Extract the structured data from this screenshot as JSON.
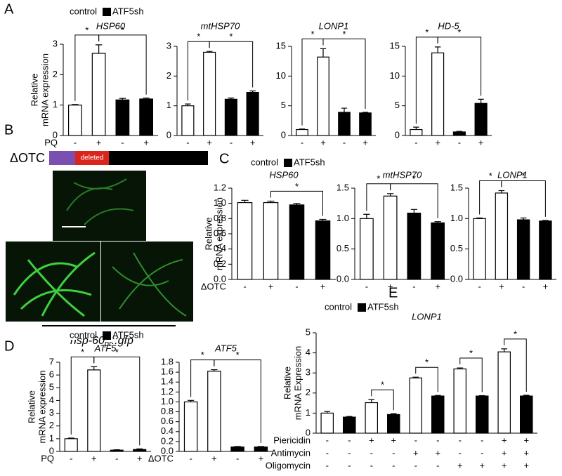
{
  "panel_labels": [
    "A",
    "B",
    "C",
    "D",
    "E"
  ],
  "construct": {
    "label": "ΔOTC",
    "segment": "deleted"
  },
  "caption": {
    "main": "hsp-60",
    "subscript": "pr",
    "suffix": "::gfp"
  },
  "chart_data": [
    {
      "type": "bar",
      "title": "HSP60",
      "y_label": [
        "Relative",
        "mRNA expression"
      ],
      "series": [
        {
          "name": "control",
          "color": "#ffffff",
          "values": [
            1.0,
            2.7,
            null,
            null
          ],
          "errors": [
            0.02,
            0.28,
            null,
            null
          ]
        },
        {
          "name": "ATF5sh",
          "color": "#000000",
          "values": [
            null,
            null,
            1.17,
            1.2
          ],
          "errors": [
            null,
            null,
            0.05,
            0.03
          ]
        }
      ],
      "conditions": [
        {
          "name": "PQ",
          "signs": [
            "-",
            "+",
            "-",
            "+"
          ]
        }
      ],
      "ylim": [
        0,
        3
      ],
      "yticks": [
        0,
        1,
        2,
        3
      ],
      "significance": [
        {
          "bars": [
            0,
            1
          ],
          "label": "*"
        },
        {
          "bars": [
            1,
            3
          ],
          "label": "*"
        }
      ]
    },
    {
      "type": "bar",
      "title": "mtHSP70",
      "series": [
        {
          "color": "#ffffff",
          "values": [
            1.0,
            2.8,
            null,
            null
          ],
          "errors": [
            0.06,
            0.03,
            null,
            null
          ]
        },
        {
          "color": "#000000",
          "values": [
            null,
            null,
            1.22,
            1.45
          ],
          "errors": [
            null,
            null,
            0.04,
            0.05
          ]
        }
      ],
      "conditions": [
        {
          "signs": [
            "-",
            "+",
            "-",
            "+"
          ]
        }
      ],
      "ylim": [
        0,
        3
      ],
      "yticks": [
        0,
        1,
        2,
        3
      ],
      "significance": [
        {
          "bars": [
            0,
            1
          ],
          "label": "*"
        },
        {
          "bars": [
            1,
            3
          ],
          "label": "*"
        }
      ]
    },
    {
      "type": "bar",
      "title": "LONP1",
      "series": [
        {
          "color": "#ffffff",
          "values": [
            1.0,
            13.2,
            null,
            null
          ],
          "errors": [
            0.1,
            1.4,
            null,
            null
          ]
        },
        {
          "color": "#000000",
          "values": [
            null,
            null,
            3.9,
            3.8
          ],
          "errors": [
            null,
            null,
            0.7,
            0.1
          ]
        }
      ],
      "conditions": [
        {
          "signs": [
            "-",
            "+",
            "-",
            "+"
          ]
        }
      ],
      "ylim": [
        0,
        15
      ],
      "yticks": [
        0,
        5,
        10,
        15
      ],
      "significance": [
        {
          "bars": [
            0,
            1
          ],
          "label": "*"
        },
        {
          "bars": [
            1,
            3
          ],
          "label": "*"
        }
      ]
    },
    {
      "type": "bar",
      "title": "HD-5",
      "series": [
        {
          "color": "#ffffff",
          "values": [
            1.0,
            13.9,
            null,
            null
          ],
          "errors": [
            0.4,
            1.0,
            null,
            null
          ]
        },
        {
          "color": "#000000",
          "values": [
            null,
            null,
            0.6,
            5.4
          ],
          "errors": [
            null,
            null,
            0.1,
            0.7
          ]
        }
      ],
      "conditions": [
        {
          "signs": [
            "-",
            "+",
            "-",
            "+"
          ]
        }
      ],
      "ylim": [
        0,
        15
      ],
      "yticks": [
        0,
        5,
        10,
        15
      ],
      "significance": [
        {
          "bars": [
            0,
            1
          ],
          "label": "*"
        },
        {
          "bars": [
            1,
            3
          ],
          "label": "*"
        }
      ]
    },
    {
      "type": "bar",
      "title": "HSP60",
      "y_label": [
        "Relative",
        "mRNA expression"
      ],
      "series": [
        {
          "name": "control",
          "color": "#ffffff",
          "values": [
            1.01,
            1.01,
            null,
            null
          ],
          "errors": [
            0.03,
            0.02,
            null,
            null
          ]
        },
        {
          "name": "ATF5sh",
          "color": "#000000",
          "values": [
            null,
            null,
            0.98,
            0.77
          ],
          "errors": [
            null,
            null,
            0.02,
            0.02
          ]
        }
      ],
      "conditions": [
        {
          "name": "ΔOTC",
          "signs": [
            "-",
            "+",
            "-",
            "+"
          ]
        }
      ],
      "ylim": [
        0,
        1.2
      ],
      "yticks": [
        {
          "value": 0,
          "label": "0.0"
        },
        0.2,
        0.4,
        0.6,
        0.8,
        {
          "value": 1,
          "label": "1.0"
        },
        1.2
      ],
      "significance": [
        {
          "bars": [
            1,
            3
          ],
          "label": "*"
        }
      ]
    },
    {
      "type": "bar",
      "title": "mtHSP70",
      "series": [
        {
          "color": "#ffffff",
          "values": [
            1.0,
            1.37,
            null,
            null
          ],
          "errors": [
            0.07,
            0.04,
            null,
            null
          ]
        },
        {
          "color": "#000000",
          "values": [
            null,
            null,
            1.09,
            0.93
          ],
          "errors": [
            null,
            null,
            0.06,
            0.02
          ]
        }
      ],
      "conditions": [
        {
          "signs": [
            "-",
            "+",
            "-",
            "+"
          ]
        }
      ],
      "ylim": [
        0,
        1.5
      ],
      "yticks": [
        {
          "value": 0,
          "label": "0.0"
        },
        0.5,
        {
          "value": 1,
          "label": "1.0"
        },
        1.5
      ],
      "significance": [
        {
          "bars": [
            0,
            1
          ],
          "label": "*"
        },
        {
          "bars": [
            1,
            3
          ],
          "label": "*"
        }
      ]
    },
    {
      "type": "bar",
      "title": "LONP1",
      "series": [
        {
          "color": "#ffffff",
          "values": [
            1.0,
            1.42,
            null,
            null
          ],
          "errors": [
            0.01,
            0.04,
            null,
            null
          ]
        },
        {
          "color": "#000000",
          "values": [
            null,
            null,
            0.98,
            0.96
          ],
          "errors": [
            null,
            null,
            0.03,
            0.01
          ]
        }
      ],
      "conditions": [
        {
          "signs": [
            "-",
            "+",
            "-",
            "+"
          ]
        }
      ],
      "ylim": [
        0,
        1.5
      ],
      "yticks": [
        {
          "value": 0,
          "label": "0.0"
        },
        0.5,
        {
          "value": 1,
          "label": "1.0"
        },
        1.5
      ],
      "significance": [
        {
          "bars": [
            0,
            1
          ],
          "label": "*"
        },
        {
          "bars": [
            1,
            3
          ],
          "label": "*"
        }
      ]
    },
    {
      "type": "bar",
      "title": "ATF5",
      "y_label": [
        "Relative",
        "mRNA expression"
      ],
      "series": [
        {
          "name": "control",
          "color": "#ffffff",
          "values": [
            1.0,
            6.4,
            null,
            null
          ],
          "errors": [
            0.05,
            0.25,
            null,
            null
          ]
        },
        {
          "name": "ATF5sh",
          "color": "#000000",
          "values": [
            null,
            null,
            0.1,
            0.15
          ],
          "errors": [
            null,
            null,
            0.03,
            0.05
          ]
        }
      ],
      "conditions": [
        {
          "name": "PQ",
          "signs": [
            "-",
            "+",
            "-",
            "+"
          ]
        }
      ],
      "ylim": [
        0,
        7
      ],
      "yticks": [
        0,
        1,
        2,
        3,
        4,
        5,
        6,
        7
      ],
      "significance": [
        {
          "bars": [
            0,
            1
          ],
          "label": "*"
        },
        {
          "bars": [
            1,
            3
          ],
          "label": "*"
        }
      ]
    },
    {
      "type": "bar",
      "title": "ATF5",
      "series": [
        {
          "color": "#ffffff",
          "values": [
            1.0,
            1.62,
            null,
            null
          ],
          "errors": [
            0.03,
            0.03,
            null,
            null
          ]
        },
        {
          "color": "#000000",
          "values": [
            null,
            null,
            0.09,
            0.09
          ],
          "errors": [
            null,
            null,
            0.01,
            0.01
          ]
        }
      ],
      "conditions": [
        {
          "name": "ΔOTC",
          "signs": [
            "-",
            "+",
            "-",
            "+"
          ]
        }
      ],
      "ylim": [
        0,
        1.8
      ],
      "yticks": [
        {
          "value": 0,
          "label": "0.0"
        },
        0.2,
        0.4,
        0.6,
        0.8,
        {
          "value": 1,
          "label": "1.0"
        },
        1.2,
        1.4,
        1.6,
        1.8
      ],
      "significance": [
        {
          "bars": [
            0,
            1
          ],
          "label": "*"
        },
        {
          "bars": [
            1,
            3
          ],
          "label": "*"
        }
      ]
    },
    {
      "type": "bar",
      "title": "LONP1",
      "y_label": [
        "Relative",
        "mRNA Expression"
      ],
      "series": [
        {
          "name": "control",
          "color": "#ffffff",
          "values": [
            1.0,
            null,
            1.52,
            null,
            2.75,
            null,
            3.2,
            null,
            4.05,
            null
          ],
          "errors": [
            0.08,
            null,
            0.15,
            null,
            0.04,
            null,
            0.05,
            null,
            0.15,
            null
          ]
        },
        {
          "name": "ATF5sh",
          "color": "#000000",
          "values": [
            null,
            0.8,
            null,
            0.93,
            null,
            1.85,
            null,
            1.85,
            null,
            1.85
          ],
          "errors": [
            null,
            0.03,
            null,
            0.04,
            null,
            0.03,
            null,
            0.02,
            null,
            0.04
          ]
        }
      ],
      "conditions": [
        {
          "name": "Piericidin",
          "signs": [
            "-",
            "-",
            "+",
            "+",
            "-",
            "-",
            "-",
            "-",
            "+",
            "+"
          ]
        },
        {
          "name": "Antimycin",
          "signs": [
            "-",
            "-",
            "-",
            "-",
            "+",
            "+",
            "-",
            "-",
            "+",
            "+"
          ]
        },
        {
          "name": "Oligomycin",
          "signs": [
            "-",
            "-",
            "-",
            "-",
            "-",
            "-",
            "+",
            "+",
            "+",
            "+"
          ]
        }
      ],
      "ylim": [
        0,
        5
      ],
      "yticks": [
        0,
        1,
        2,
        3,
        4,
        5
      ],
      "significance": [
        {
          "bars": [
            2,
            3
          ],
          "label": "*"
        },
        {
          "bars": [
            4,
            5
          ],
          "label": "*"
        },
        {
          "bars": [
            6,
            7
          ],
          "label": "*"
        },
        {
          "bars": [
            8,
            9
          ],
          "label": "*"
        }
      ]
    }
  ]
}
